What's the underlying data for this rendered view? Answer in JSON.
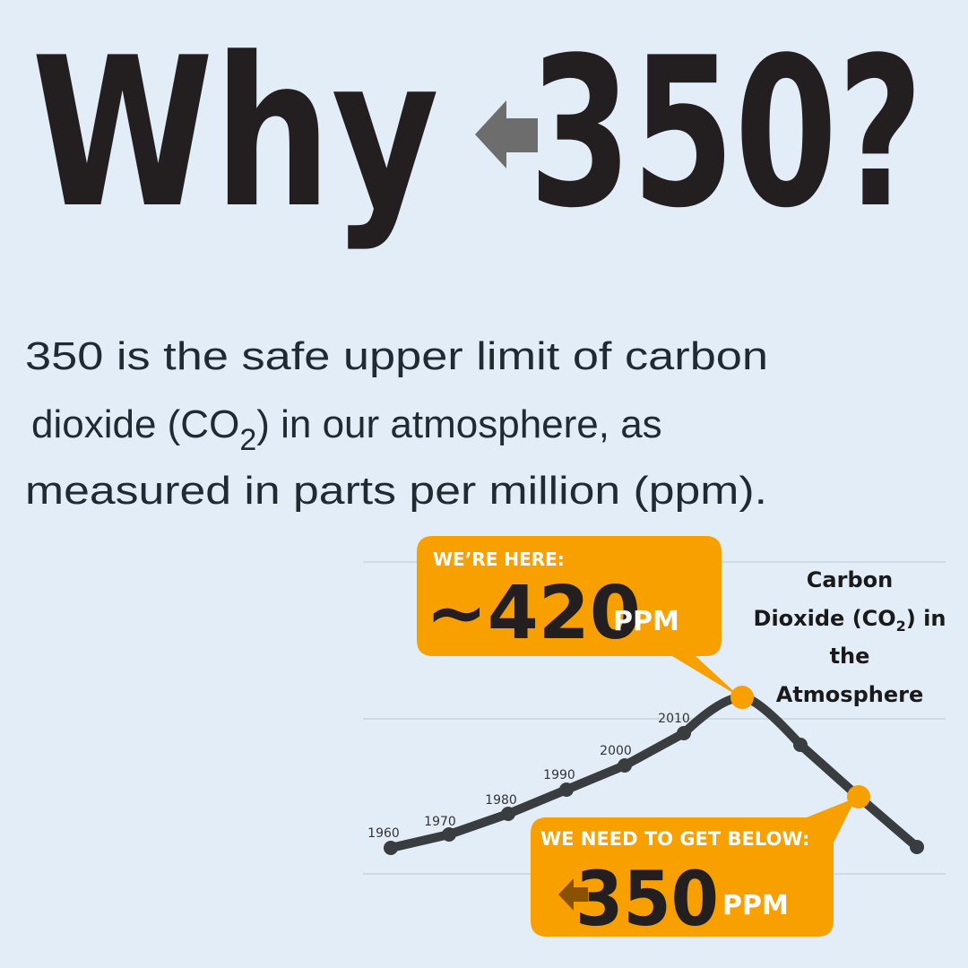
{
  "title": {
    "word": "Why",
    "number": "350?"
  },
  "body": {
    "line1": "350 is the safe upper limit of carbon",
    "line2_start": "dioxide (CO",
    "line2_sub": "2",
    "line2_end": ") in our atmosphere, as",
    "line3": "measured in parts per million (ppm)."
  },
  "graphic": {
    "label": {
      "line1": "Carbon",
      "line2_start": "Dioxide (CO",
      "line2_sub": "2",
      "line2_end": ") in",
      "line3": "the",
      "line4": "Atmosphere"
    },
    "years": [
      "1960",
      "1970",
      "1980",
      "1990",
      "2000",
      "2010"
    ],
    "current": {
      "heading": "WE’RE HERE:",
      "value": "~420",
      "unit": "PPM"
    },
    "target": {
      "heading": "WE NEED TO GET BELOW:",
      "value": "350",
      "unit": "PPM"
    }
  }
}
